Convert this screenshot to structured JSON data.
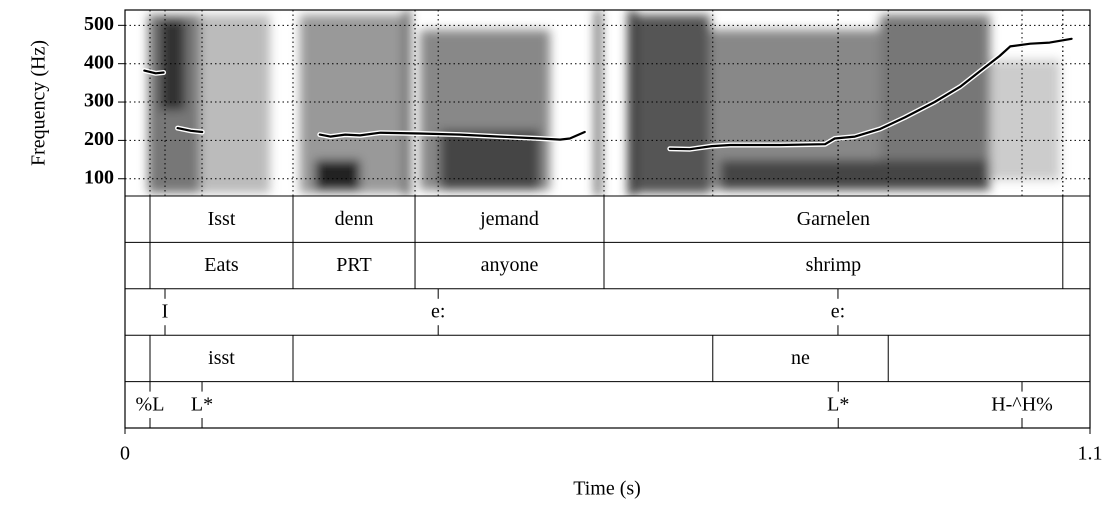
{
  "chart_data": {
    "type": "pitch",
    "ylabel": "Frequency (Hz)",
    "xlabel": "Time (s)",
    "xlim": [
      0,
      1.1
    ],
    "xticks": [
      0,
      1.1
    ],
    "ylim": [
      55,
      540
    ],
    "yticks": [
      100,
      200,
      300,
      400,
      500
    ],
    "grid": true,
    "color": "#000000",
    "x": [
      0.022,
      0.035,
      0.044,
      0.052,
      0.06,
      0.075,
      0.088,
      0.15,
      0.222,
      0.234,
      0.251,
      0.268,
      0.291,
      0.336,
      0.382,
      0.427,
      0.473,
      0.496,
      0.507,
      0.524,
      0.57,
      0.621,
      0.644,
      0.669,
      0.69,
      0.747,
      0.798,
      0.809,
      0.832,
      0.861,
      0.889,
      0.923,
      0.952,
      0.98,
      0.997,
      1.009,
      1.032,
      1.054,
      1.079
    ],
    "values": [
      382,
      375,
      377,
      null,
      232,
      225,
      222,
      null,
      215,
      210,
      215,
      213,
      220,
      218,
      215,
      210,
      205,
      202,
      205,
      222,
      null,
      178,
      177,
      185,
      188,
      188,
      190,
      205,
      210,
      230,
      260,
      300,
      340,
      390,
      420,
      445,
      452,
      455,
      465
    ],
    "interval_tiers": [
      {
        "boundaries": [
          0.0285,
          0.1915,
          0.3306,
          0.546,
          1.069
        ],
        "labels": [
          "Isst",
          "denn",
          "jemand",
          "Garnelen"
        ],
        "row": 0
      },
      {
        "boundaries": [
          0.0285,
          0.1915,
          0.3306,
          0.546,
          1.069
        ],
        "labels": [
          "Eats",
          "PRT",
          "anyone",
          "shrimp"
        ],
        "row": 1
      },
      {
        "boundaries": [
          0.0285,
          0.1915,
          0.67,
          0.87
        ],
        "labels": [
          "isst",
          null,
          "ne"
        ],
        "row": 3
      }
    ],
    "point_tiers": [
      {
        "times": [
          0.0456,
          0.357,
          0.8127
        ],
        "labels": [
          "I",
          "e:",
          "e:"
        ],
        "row": 2
      },
      {
        "times": [
          0.0285,
          0.0878,
          0.813,
          1.0225
        ],
        "labels": [
          "%L",
          "L*",
          "L*",
          "H-^H%"
        ],
        "row": 4
      }
    ]
  }
}
